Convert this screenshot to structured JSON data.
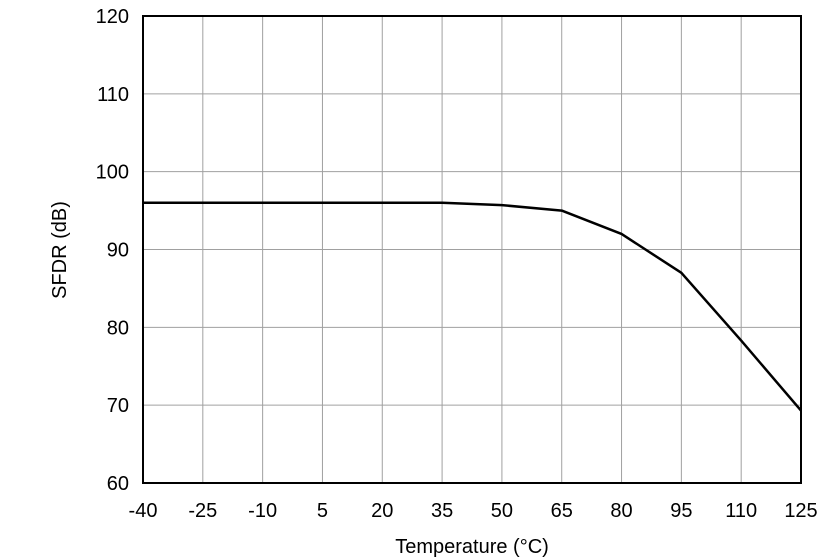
{
  "chart_data": {
    "type": "line",
    "x_label": "Temperature (°C)",
    "y_label": "SFDR (dB)",
    "x": [
      -40,
      -25,
      -10,
      5,
      20,
      35,
      50,
      65,
      80,
      95,
      110,
      125
    ],
    "series": [
      {
        "color": "#000000",
        "values": [
          96,
          96,
          96,
          96,
          96,
          96,
          95.7,
          95,
          92,
          87,
          78.3,
          69.3
        ]
      }
    ],
    "xlim": [
      -40,
      125
    ],
    "xticks": [
      -40,
      -25,
      -10,
      5,
      20,
      35,
      50,
      65,
      80,
      95,
      110,
      125
    ],
    "ylim": [
      60,
      120
    ],
    "yticks": [
      60,
      70,
      80,
      90,
      100,
      110,
      120
    ],
    "grid": true
  }
}
